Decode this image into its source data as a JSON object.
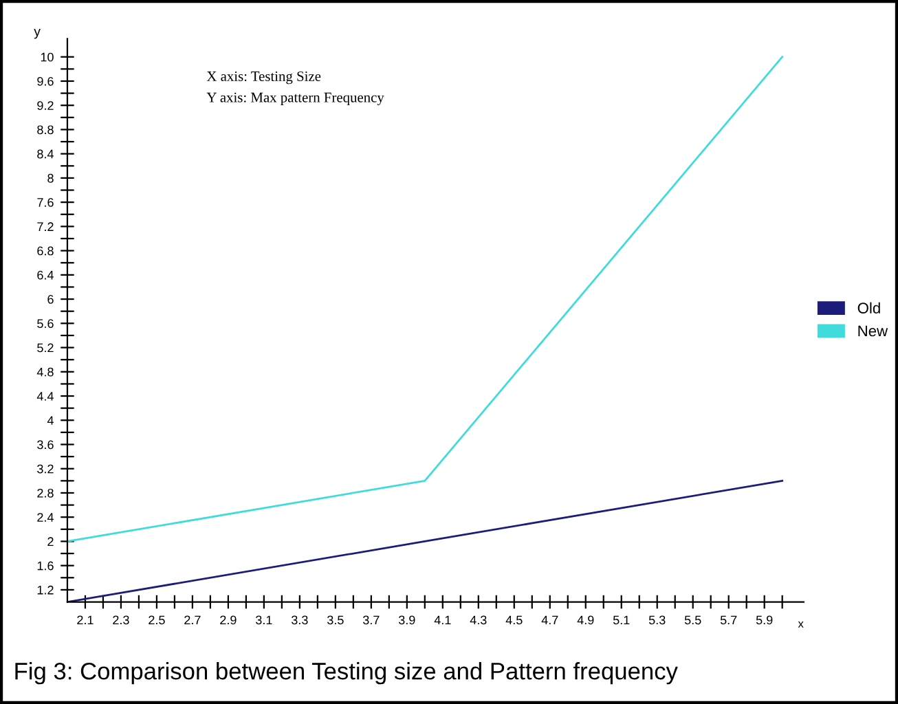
{
  "chart_data": {
    "type": "line",
    "xlabel": "x",
    "ylabel": "y",
    "x": [
      2,
      4,
      6
    ],
    "series": [
      {
        "name": "Old",
        "color": "#1c1c7a",
        "values": [
          1,
          2,
          3
        ]
      },
      {
        "name": "New",
        "color": "#40dcdc",
        "values": [
          2,
          3,
          10
        ]
      }
    ],
    "xlim": [
      2,
      6.12
    ],
    "ylim": [
      1,
      10.3
    ],
    "xticks": [
      {
        "value": 2.1,
        "label": "2.1"
      },
      {
        "value": 2.2,
        "label": null
      },
      {
        "value": 2.3,
        "label": "2.3"
      },
      {
        "value": 2.4,
        "label": null
      },
      {
        "value": 2.5,
        "label": "2.5"
      },
      {
        "value": 2.6,
        "label": null
      },
      {
        "value": 2.7,
        "label": "2.7"
      },
      {
        "value": 2.8,
        "label": null
      },
      {
        "value": 2.9,
        "label": "2.9"
      },
      {
        "value": 3.0,
        "label": null
      },
      {
        "value": 3.1,
        "label": "3.1"
      },
      {
        "value": 3.2,
        "label": null
      },
      {
        "value": 3.3,
        "label": "3.3"
      },
      {
        "value": 3.4,
        "label": null
      },
      {
        "value": 3.5,
        "label": "3.5"
      },
      {
        "value": 3.6,
        "label": null
      },
      {
        "value": 3.7,
        "label": "3.7"
      },
      {
        "value": 3.8,
        "label": null
      },
      {
        "value": 3.9,
        "label": "3.9"
      },
      {
        "value": 4.0,
        "label": null
      },
      {
        "value": 4.1,
        "label": "4.1"
      },
      {
        "value": 4.2,
        "label": null
      },
      {
        "value": 4.3,
        "label": "4.3"
      },
      {
        "value": 4.4,
        "label": null
      },
      {
        "value": 4.5,
        "label": "4.5"
      },
      {
        "value": 4.6,
        "label": null
      },
      {
        "value": 4.7,
        "label": "4.7"
      },
      {
        "value": 4.8,
        "label": null
      },
      {
        "value": 4.9,
        "label": "4.9"
      },
      {
        "value": 5.0,
        "label": null
      },
      {
        "value": 5.1,
        "label": "5.1"
      },
      {
        "value": 5.2,
        "label": null
      },
      {
        "value": 5.3,
        "label": "5.3"
      },
      {
        "value": 5.4,
        "label": null
      },
      {
        "value": 5.5,
        "label": "5.5"
      },
      {
        "value": 5.6,
        "label": null
      },
      {
        "value": 5.7,
        "label": "5.7"
      },
      {
        "value": 5.8,
        "label": null
      },
      {
        "value": 5.9,
        "label": "5.9"
      },
      {
        "value": 6.0,
        "label": null
      }
    ],
    "yticks": [
      {
        "value": 1.2,
        "label": "1.2"
      },
      {
        "value": 1.4,
        "label": null
      },
      {
        "value": 1.6,
        "label": "1.6"
      },
      {
        "value": 1.8,
        "label": null
      },
      {
        "value": 2,
        "label": "2"
      },
      {
        "value": 2.2,
        "label": null
      },
      {
        "value": 2.4,
        "label": "2.4"
      },
      {
        "value": 2.6,
        "label": null
      },
      {
        "value": 2.8,
        "label": "2.8"
      },
      {
        "value": 3.0,
        "label": null
      },
      {
        "value": 3.2,
        "label": "3.2"
      },
      {
        "value": 3.4,
        "label": null
      },
      {
        "value": 3.6,
        "label": "3.6"
      },
      {
        "value": 3.8,
        "label": null
      },
      {
        "value": 4,
        "label": "4"
      },
      {
        "value": 4.2,
        "label": null
      },
      {
        "value": 4.4,
        "label": "4.4"
      },
      {
        "value": 4.6,
        "label": null
      },
      {
        "value": 4.8,
        "label": "4.8"
      },
      {
        "value": 5.0,
        "label": null
      },
      {
        "value": 5.2,
        "label": "5.2"
      },
      {
        "value": 5.4,
        "label": null
      },
      {
        "value": 5.6,
        "label": "5.6"
      },
      {
        "value": 5.8,
        "label": null
      },
      {
        "value": 6,
        "label": "6"
      },
      {
        "value": 6.2,
        "label": null
      },
      {
        "value": 6.4,
        "label": "6.4"
      },
      {
        "value": 6.6,
        "label": null
      },
      {
        "value": 6.8,
        "label": "6.8"
      },
      {
        "value": 7.0,
        "label": null
      },
      {
        "value": 7.2,
        "label": "7.2"
      },
      {
        "value": 7.4,
        "label": null
      },
      {
        "value": 7.6,
        "label": "7.6"
      },
      {
        "value": 7.8,
        "label": null
      },
      {
        "value": 8,
        "label": "8"
      },
      {
        "value": 8.2,
        "label": null
      },
      {
        "value": 8.4,
        "label": "8.4"
      },
      {
        "value": 8.6,
        "label": null
      },
      {
        "value": 8.8,
        "label": "8.8"
      },
      {
        "value": 9.0,
        "label": null
      },
      {
        "value": 9.2,
        "label": "9.2"
      },
      {
        "value": 9.4,
        "label": null
      },
      {
        "value": 9.6,
        "label": "9.6"
      },
      {
        "value": 9.8,
        "label": null
      },
      {
        "value": 10,
        "label": "10"
      }
    ],
    "annotations": [
      "X axis: Testing Size",
      "Y axis: Max pattern Frequency",
      "Fig 3: Comparison between Testing size and Pattern frequency"
    ],
    "legend": "right",
    "grid": false,
    "marker": "none",
    "line_style": "solid"
  }
}
